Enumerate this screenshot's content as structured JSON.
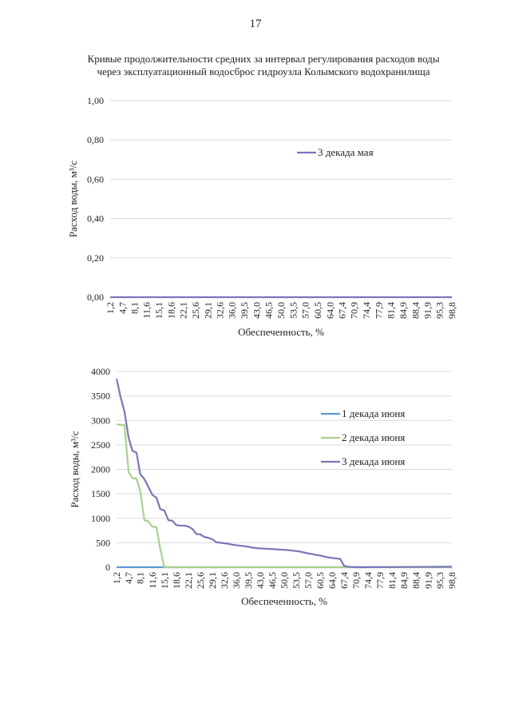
{
  "page_number": "17",
  "title_lines": [
    "Кривые продолжительности средних за интервал регулирования расходов воды",
    "через эксплуатационный водосброс гидроузла Колымского водохранилища"
  ],
  "chart_data": [
    {
      "type": "line",
      "xlabel": "Обеспеченность, %",
      "ylabel": "Расход воды, м³/с",
      "ylim": [
        0,
        1.0
      ],
      "y_ticks": [
        "0,00",
        "0,20",
        "0,40",
        "0,60",
        "0,80",
        "1,00"
      ],
      "grid": true,
      "legend_position": "top-right",
      "categories": [
        "1,2",
        "4,7",
        "8,1",
        "11,6",
        "15,1",
        "18,6",
        "22,1",
        "25,6",
        "29,1",
        "32,6",
        "36,0",
        "39,5",
        "43,0",
        "46,5",
        "50,0",
        "53,5",
        "57,0",
        "60,5",
        "64,0",
        "67,4",
        "70,9",
        "74,4",
        "77,9",
        "81,4",
        "84,9",
        "88,4",
        "91,9",
        "95,3",
        "98,8"
      ],
      "x": [
        1.2,
        98.8
      ],
      "series": [
        {
          "name": "3 декада мая",
          "color": "#7b76b8",
          "x": [
            1.2,
            98.8
          ],
          "values": [
            0,
            0
          ]
        }
      ]
    },
    {
      "type": "line",
      "xlabel": "Обеспеченность, %",
      "ylabel": "Расход воды, м³/с",
      "ylim": [
        0,
        4000
      ],
      "y_ticks": [
        "0",
        "500",
        "1000",
        "1500",
        "2000",
        "2500",
        "3000",
        "3500",
        "4000"
      ],
      "grid": true,
      "legend_position": "top-right",
      "categories": [
        "1,2",
        "4,7",
        "8,1",
        "11,6",
        "15,1",
        "18,6",
        "22,1",
        "25,6",
        "29,1",
        "32,6",
        "36,0",
        "39,5",
        "43,0",
        "46,5",
        "50,0",
        "53,5",
        "57,0",
        "60,5",
        "64,0",
        "67,4",
        "70,9",
        "74,4",
        "77,9",
        "81,4",
        "84,9",
        "88,4",
        "91,9",
        "95,3",
        "98,8"
      ],
      "series": [
        {
          "name": "1 декада июня",
          "color": "#5b9bd5",
          "x": [
            1.2,
            15.1,
            98.8
          ],
          "values": [
            0,
            0,
            0
          ]
        },
        {
          "name": "2 декада июня",
          "color": "#a9d18e",
          "x": [
            1.2,
            3.5,
            4.7,
            5.8,
            7.0,
            8.1,
            9.3,
            10.4,
            11.6,
            12.8,
            13.9,
            15.1,
            16.3,
            98.8
          ],
          "values": [
            2920,
            2900,
            1950,
            1820,
            1810,
            1550,
            960,
            940,
            830,
            820,
            380,
            0,
            0,
            0
          ]
        },
        {
          "name": "3 декада июня",
          "color": "#7b76b8",
          "x": [
            1.2,
            2.3,
            3.5,
            4.7,
            5.8,
            7.0,
            8.1,
            9.3,
            10.4,
            11.6,
            12.8,
            13.9,
            15.1,
            16.3,
            17.4,
            18.6,
            19.8,
            20.9,
            22.1,
            23.3,
            24.4,
            25.6,
            26.7,
            27.9,
            29.1,
            30.2,
            31.4,
            32.6,
            33.7,
            34.9,
            36.0,
            37.2,
            38.4,
            39.5,
            40.7,
            41.9,
            43.0,
            44.2,
            45.3,
            46.5,
            47.7,
            48.8,
            50.0,
            51.2,
            52.3,
            53.5,
            54.6,
            55.8,
            57.0,
            58.1,
            59.3,
            60.5,
            61.6,
            62.8,
            64.0,
            65.1,
            66.3,
            67.4,
            68.6,
            69.8,
            70.9,
            72.1,
            98.8
          ],
          "values": [
            3850,
            3500,
            3180,
            2650,
            2380,
            2340,
            1900,
            1800,
            1650,
            1480,
            1420,
            1190,
            1160,
            960,
            950,
            860,
            850,
            850,
            830,
            780,
            680,
            670,
            620,
            600,
            570,
            510,
            500,
            490,
            480,
            460,
            450,
            440,
            430,
            420,
            400,
            390,
            385,
            380,
            375,
            370,
            365,
            360,
            355,
            350,
            340,
            330,
            320,
            300,
            280,
            270,
            250,
            240,
            220,
            200,
            190,
            180,
            170,
            30,
            10,
            5,
            0,
            0,
            10
          ]
        }
      ]
    }
  ]
}
